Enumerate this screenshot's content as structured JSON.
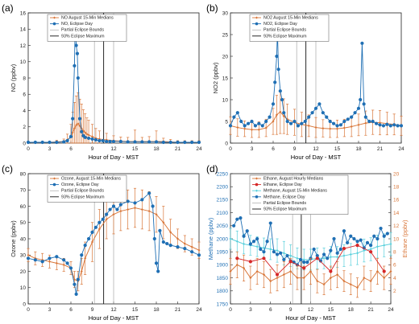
{
  "chart_data": [
    {
      "type": "line",
      "panel_label": "(a)",
      "xlabel": "Hour of Day - MST",
      "ylabel": "NO (ppbv)",
      "xlim": [
        0,
        24
      ],
      "ylim": [
        0,
        16
      ],
      "xticks": [
        "0",
        "3",
        "6",
        "9",
        "12",
        "15",
        "18",
        "21",
        "24"
      ],
      "yticks": [
        "0",
        "2",
        "4",
        "6",
        "8",
        "10",
        "12",
        "14",
        "16"
      ],
      "eclipse_lines": {
        "partial": [
          9.3,
          12.0
        ],
        "max": 10.6
      },
      "legend": [
        "NO August 15-Min Medians",
        "NO, Eclipse Day",
        "Partial Eclipse Bounds",
        "93% Eclipse Maximum"
      ],
      "series": [
        {
          "name": "NO August 15-Min Medians",
          "color": "#d9773a",
          "x": [
            0,
            1,
            2,
            3,
            4,
            5,
            5.5,
            6,
            6.25,
            6.5,
            6.75,
            7,
            7.25,
            7.5,
            7.75,
            8,
            8.25,
            8.5,
            9,
            9.5,
            10,
            11,
            12,
            13,
            14,
            15,
            16,
            17,
            18,
            19,
            20,
            21,
            22,
            23,
            24
          ],
          "y": [
            0.1,
            0.1,
            0.1,
            0.1,
            0.15,
            0.2,
            0.4,
            0.8,
            1.3,
            1.8,
            2.2,
            2.4,
            2.1,
            1.8,
            1.5,
            1.3,
            1.1,
            1.0,
            0.8,
            0.6,
            0.5,
            0.4,
            0.3,
            0.25,
            0.2,
            0.2,
            0.2,
            0.2,
            0.2,
            0.2,
            0.15,
            0.1,
            0.1,
            0.1,
            0.1
          ],
          "err": [
            0.1,
            0.1,
            0.1,
            0.1,
            0.2,
            0.3,
            0.7,
            1.5,
            2.5,
            3.2,
            3.6,
            3.8,
            3.3,
            3.0,
            2.6,
            2.3,
            2.0,
            1.8,
            1.5,
            1.2,
            1.0,
            0.8,
            0.6,
            0.5,
            0.5,
            1.4,
            0.5,
            0.6,
            1.3,
            0.4,
            0.3,
            0.2,
            0.2,
            0.2,
            0.2
          ]
        },
        {
          "name": "NO, Eclipse Day",
          "color": "#1f6fb4",
          "x": [
            0,
            1,
            2,
            3,
            4,
            5,
            5.5,
            6,
            6.25,
            6.5,
            6.6,
            6.75,
            6.9,
            7,
            7.25,
            7.5,
            7.75,
            8,
            8.5,
            9,
            9.5,
            10,
            10.5,
            11,
            11.5,
            12,
            13,
            14,
            15,
            16,
            17,
            18,
            19,
            20,
            21,
            22,
            23,
            24
          ],
          "y": [
            0.1,
            0.1,
            0.1,
            0.1,
            0.1,
            0.15,
            0.3,
            0.8,
            3,
            9.5,
            15,
            12,
            11,
            8,
            3,
            1.4,
            0.9,
            0.7,
            0.6,
            0.5,
            0.4,
            0.3,
            0.3,
            0.2,
            0.2,
            0.2,
            0.2,
            0.15,
            0.15,
            0.15,
            0.15,
            0.15,
            0.1,
            0.1,
            0.1,
            0.1,
            0.1,
            0.1
          ]
        }
      ]
    },
    {
      "type": "line",
      "panel_label": "(b)",
      "xlabel": "Hour of Day - MST",
      "ylabel": "NO2 (ppbv)",
      "xlim": [
        0,
        24
      ],
      "ylim": [
        0,
        30
      ],
      "xticks": [
        "0",
        "3",
        "6",
        "9",
        "12",
        "15",
        "18",
        "21",
        "24"
      ],
      "yticks": [
        "0",
        "5",
        "10",
        "15",
        "20",
        "25",
        "30"
      ],
      "eclipse_lines": {
        "partial": [
          9.3,
          12.0
        ],
        "max": 10.6
      },
      "legend": [
        "NO2 August 15-Min Medians",
        "NO2, Eclipse Day",
        "Partial Eclipse Bounds",
        "93% Eclipse Maximum"
      ],
      "series": [
        {
          "name": "NO2 August 15-Min Medians",
          "color": "#d9773a",
          "x": [
            0,
            1,
            2,
            3,
            4,
            5,
            6,
            6.5,
            7,
            7.5,
            8,
            9,
            10,
            11,
            12,
            13,
            14,
            15,
            16,
            17,
            18,
            19,
            20,
            21,
            22,
            23,
            24
          ],
          "y": [
            4,
            3.6,
            3.3,
            3.1,
            3.1,
            3.5,
            5,
            6.5,
            7.2,
            6.2,
            5.5,
            4.8,
            4.3,
            4,
            3.6,
            3.4,
            3.3,
            3.3,
            3.5,
            3.8,
            4.2,
            4.6,
            4.8,
            4.7,
            4.5,
            4.3,
            4
          ],
          "err": [
            2,
            2,
            1.8,
            1.8,
            1.8,
            2,
            3,
            4.5,
            5,
            4,
            3.5,
            3,
            2.8,
            2.5,
            2.3,
            2,
            2,
            2,
            2,
            2.3,
            2.5,
            2.8,
            2.8,
            2.8,
            2.6,
            2.4,
            2.2
          ]
        },
        {
          "name": "NO2, Eclipse Day",
          "color": "#1f6fb4",
          "x": [
            0,
            0.5,
            1,
            1.5,
            2,
            2.5,
            3,
            3.5,
            4,
            4.5,
            5,
            5.5,
            6,
            6.25,
            6.5,
            6.6,
            6.75,
            7,
            7.25,
            7.5,
            8,
            8.5,
            9,
            9.5,
            10,
            10.5,
            11,
            11.5,
            12,
            12.5,
            13,
            13.5,
            14,
            14.5,
            15,
            15.5,
            16,
            16.5,
            17,
            17.5,
            18,
            18.25,
            18.5,
            18.75,
            19,
            19.5,
            20,
            20.5,
            21,
            21.5,
            22,
            22.5,
            23,
            23.5,
            24
          ],
          "y": [
            4,
            6,
            7,
            5,
            4,
            4.5,
            5,
            4,
            4.5,
            4,
            5,
            6,
            9,
            14,
            20,
            26,
            17,
            12,
            10,
            7,
            5,
            4.5,
            5,
            4,
            4.5,
            5,
            6,
            7,
            8,
            9,
            7,
            6,
            5,
            4.5,
            4,
            4.2,
            5,
            5.5,
            6,
            7,
            8,
            10,
            23,
            9,
            6,
            5,
            5,
            4.5,
            4.2,
            4,
            4.3,
            4,
            4.2,
            4,
            4
          ]
        }
      ]
    },
    {
      "type": "line",
      "panel_label": "(c)",
      "xlabel": "Hour of Day - MST",
      "ylabel": "Ozone (ppbv)",
      "xlim": [
        0,
        24
      ],
      "ylim": [
        0,
        80
      ],
      "xticks": [
        "0",
        "3",
        "6",
        "9",
        "12",
        "15",
        "18",
        "21",
        "24"
      ],
      "yticks": [
        "0",
        "10",
        "20",
        "30",
        "40",
        "50",
        "60",
        "70",
        "80"
      ],
      "eclipse_lines": {
        "partial": [
          9.3,
          12.0
        ],
        "max": 10.6
      },
      "legend": [
        "Ozone, August 15-Min Medians",
        "Ozone, Eclipse Day",
        "Partial Eclipse Bounds",
        "93% Eclipse Maximum"
      ],
      "series": [
        {
          "name": "Ozone, August 15-Min Medians",
          "color": "#d9773a",
          "x": [
            0,
            1,
            2,
            3,
            4,
            5,
            6,
            6.5,
            7,
            7.5,
            8,
            9,
            10,
            11,
            12,
            13,
            14,
            15,
            16,
            17,
            18,
            19,
            20,
            21,
            22,
            23,
            24
          ],
          "y": [
            30,
            28,
            27,
            26,
            25,
            24,
            22,
            15,
            14,
            20,
            28,
            38,
            46,
            52,
            55,
            57,
            58,
            59,
            58,
            57,
            55,
            50,
            44,
            40,
            37,
            35,
            33
          ],
          "err": [
            4,
            4,
            4,
            4,
            4,
            4,
            4,
            5,
            6,
            8,
            10,
            12,
            12,
            12,
            12,
            12,
            12,
            12,
            12,
            12,
            11,
            10,
            8,
            6,
            5,
            5,
            5
          ]
        },
        {
          "name": "Ozone, Eclipse Day",
          "color": "#1f6fb4",
          "x": [
            0,
            1,
            2,
            3,
            4,
            5,
            5.5,
            6,
            6.5,
            6.75,
            7,
            7.5,
            8,
            8.5,
            9,
            9.5,
            10,
            10.5,
            11,
            11.5,
            12,
            12.5,
            13,
            14,
            15,
            16,
            17,
            17.5,
            17.75,
            18,
            18.25,
            18.5,
            19,
            19.5,
            20,
            21,
            22,
            23,
            24
          ],
          "y": [
            28,
            27,
            26,
            28,
            29,
            27,
            25,
            22,
            12,
            6,
            15,
            30,
            36,
            40,
            44,
            47,
            50,
            52,
            55,
            58,
            60,
            58,
            61,
            63,
            62,
            64,
            68,
            60,
            40,
            25,
            20,
            45,
            38,
            37,
            36,
            35,
            34,
            32,
            30
          ]
        }
      ]
    },
    {
      "type": "line",
      "panel_label": "(d)",
      "xlabel": "Hour of Day - MST",
      "ylabel": "Methane (ppbv)",
      "ylabel_right": "Ethane (ppbv)",
      "xlim": [
        0,
        24
      ],
      "ylim": [
        1750,
        2250
      ],
      "ylim_right": [
        0,
        20
      ],
      "xticks": [
        "0",
        "3",
        "6",
        "9",
        "12",
        "15",
        "18",
        "21",
        "24"
      ],
      "yticks": [
        "1750",
        "1800",
        "1850",
        "1900",
        "1950",
        "2000",
        "2050",
        "2100",
        "2150",
        "2200",
        "2250"
      ],
      "yticks_right": [
        "2",
        "4",
        "6",
        "8",
        "10",
        "12",
        "14",
        "16",
        "18",
        "20"
      ],
      "eclipse_lines": {
        "partial": [
          9.3,
          12.0
        ],
        "max": 10.6
      },
      "legend": [
        "Ethane, August Hourly Medians",
        "Ethane, Eclipse Day",
        "Methane, August 15-Min Medians",
        "Methane, Eclipse Day",
        "Partial Eclipse Bounds",
        "93% Eclipse Maximum"
      ],
      "series": [
        {
          "name": "Methane, August 15-Min Medians",
          "color": "#5ad0dc",
          "axis": "left",
          "x": [
            0,
            1,
            2,
            3,
            4,
            5,
            6,
            7,
            8,
            9,
            10,
            11,
            12,
            13,
            14,
            15,
            16,
            17,
            18,
            19,
            20,
            21,
            22,
            23,
            24
          ],
          "y": [
            2000,
            1990,
            1980,
            1975,
            1970,
            1965,
            1960,
            1955,
            1945,
            1935,
            1925,
            1920,
            1920,
            1925,
            1925,
            1930,
            1930,
            1935,
            1940,
            1945,
            1955,
            1960,
            1970,
            1975,
            1980
          ],
          "err": [
            40,
            40,
            38,
            38,
            38,
            38,
            40,
            45,
            45,
            42,
            40,
            40,
            40,
            40,
            40,
            40,
            40,
            42,
            42,
            44,
            44,
            44,
            44,
            44,
            44
          ]
        },
        {
          "name": "Methane, Eclipse Day",
          "color": "#1f6fb4",
          "axis": "left",
          "x": [
            0.5,
            1,
            1.5,
            2,
            2.5,
            3,
            3.5,
            4,
            4.5,
            5,
            5.5,
            6,
            6.5,
            7,
            7.5,
            8,
            8.5,
            9,
            9.5,
            10,
            10.5,
            11,
            11.5,
            12,
            12.5,
            13,
            13.5,
            14,
            14.5,
            15,
            15.5,
            16,
            16.5,
            17,
            17.5,
            18,
            18.5,
            19,
            19.5,
            20,
            20.5,
            21,
            21.5,
            22,
            22.5,
            23,
            23.5
          ],
          "y": [
            2050,
            2075,
            2080,
            2010,
            2030,
            1980,
            1990,
            2000,
            1960,
            1950,
            1990,
            2060,
            1950,
            1940,
            1945,
            1920,
            1935,
            1915,
            1910,
            1900,
            1920,
            1910,
            1910,
            1925,
            1960,
            1935,
            1915,
            1940,
            1925,
            1955,
            2000,
            1945,
            1960,
            2030,
            1985,
            2010,
            2000,
            1990,
            1995,
            1965,
            1985,
            1975,
            2010,
            2000,
            2040,
            2010,
            2020
          ]
        },
        {
          "name": "Ethane, August Hourly Medians",
          "color": "#d9773a",
          "axis": "right",
          "x": [
            0,
            1,
            2,
            3,
            4,
            5,
            6,
            7,
            8,
            9,
            10,
            11,
            12,
            13,
            14,
            15,
            16,
            17,
            18,
            19,
            20,
            21,
            22,
            23,
            24
          ],
          "y": [
            5,
            6,
            5.5,
            4,
            5,
            4.5,
            3.5,
            4,
            4.5,
            5,
            4,
            4,
            5,
            3.5,
            3,
            4,
            4.5,
            3.5,
            3,
            2.5,
            4,
            3.5,
            5,
            4,
            5
          ],
          "err": [
            2,
            2,
            2,
            1.8,
            2,
            2,
            1.8,
            2,
            2,
            2,
            1.8,
            1.8,
            2,
            1.8,
            1.6,
            1.8,
            2,
            1.6,
            1.6,
            1.5,
            1.8,
            1.6,
            2,
            1.8,
            2
          ]
        },
        {
          "name": "Ethane, Eclipse Day",
          "color": "#d62728",
          "axis": "right",
          "x": [
            1,
            3,
            5,
            7,
            9,
            11,
            13,
            15,
            17,
            19,
            21,
            23
          ],
          "y": [
            7,
            6.5,
            7,
            4.5,
            6.5,
            5.5,
            7,
            5,
            8.5,
            9,
            8,
            5
          ]
        }
      ]
    }
  ]
}
